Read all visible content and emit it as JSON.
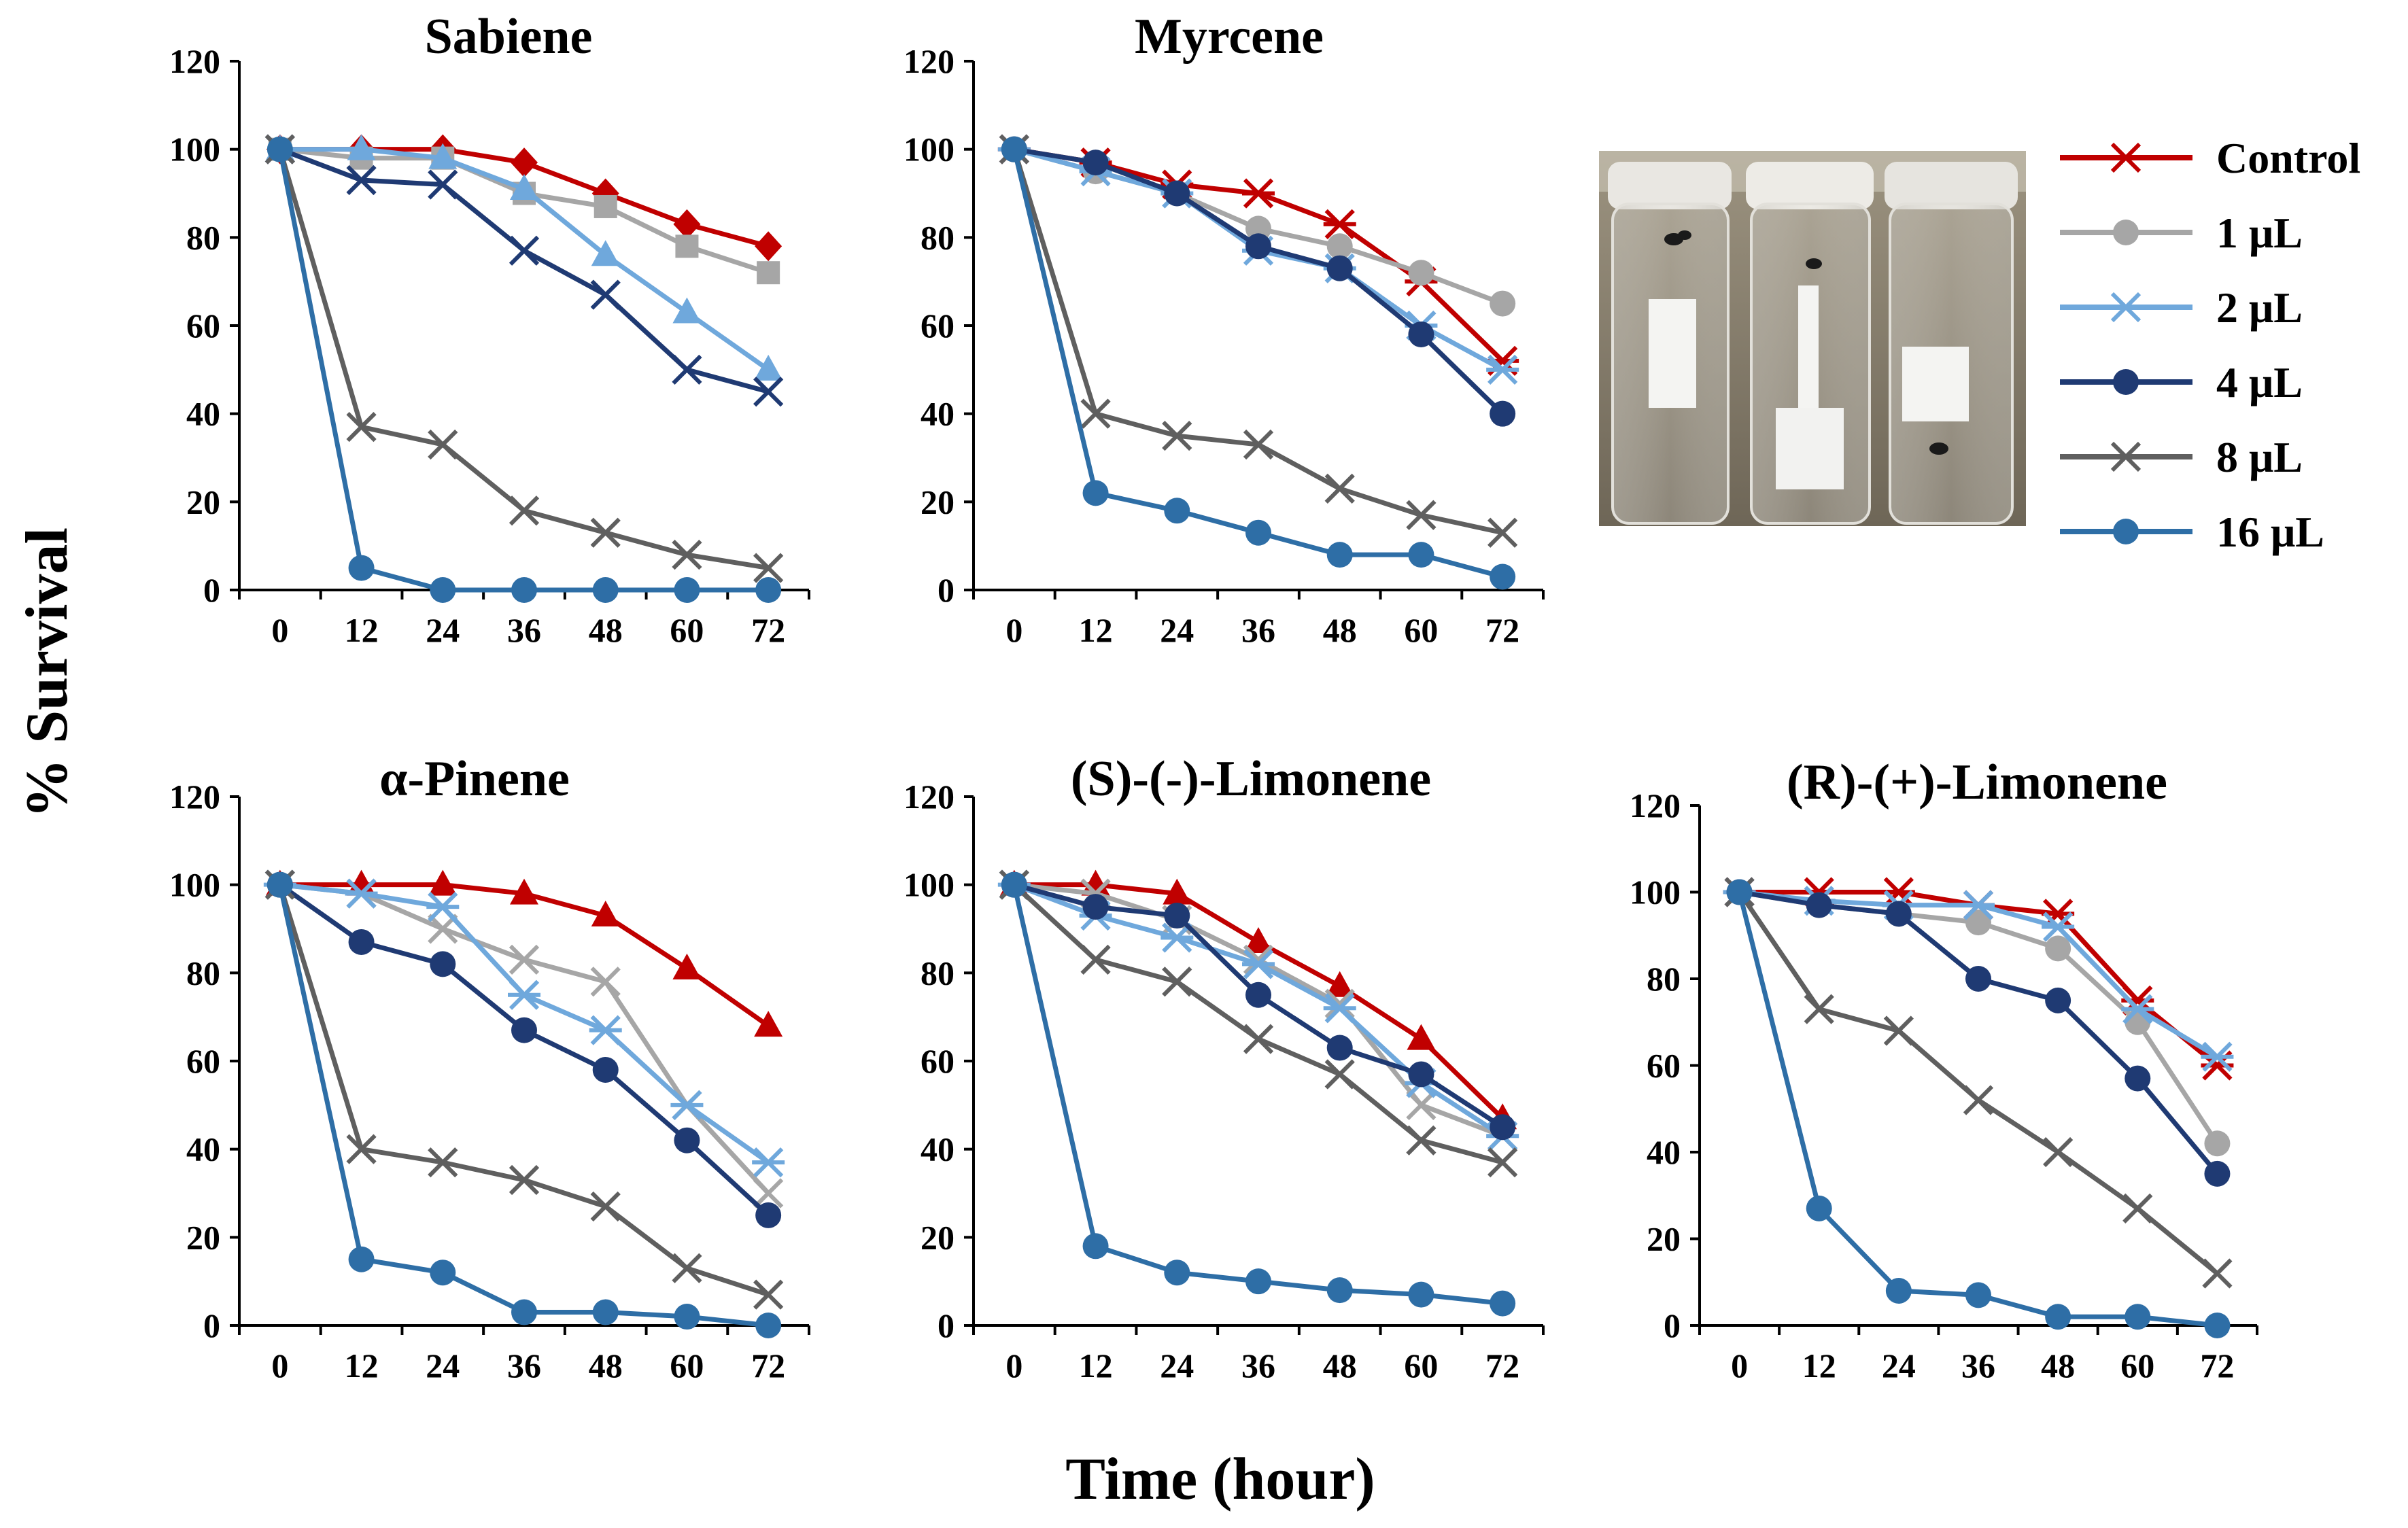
{
  "figure": {
    "ylabel": "% Survival",
    "xlabel": "Time (hour)",
    "photo_name": "vials-photo"
  },
  "legend": {
    "entries": [
      {
        "label": "Control",
        "color": "#C00000",
        "marker": "asterisk"
      },
      {
        "label": "1 μL",
        "color": "#A6A6A6",
        "marker": "circle"
      },
      {
        "label": "2 μL",
        "color": "#6FA8DC",
        "marker": "asterisk"
      },
      {
        "label": "4 μL",
        "color": "#1F3A73",
        "marker": "circle"
      },
      {
        "label": "8 μL",
        "color": "#5F5F5F",
        "marker": "x"
      },
      {
        "label": "16 μL",
        "color": "#2E6EA6",
        "marker": "circle"
      }
    ]
  },
  "chart_data": [
    {
      "type": "line",
      "title": "Sabiene",
      "categories": [
        "0",
        "12",
        "24",
        "36",
        "48",
        "60",
        "72"
      ],
      "xlabel": "Time (hour)",
      "ylabel": "% Survival",
      "ylim": [
        0,
        120
      ],
      "yticks": [
        "0",
        "20",
        "40",
        "60",
        "80",
        "100",
        "120"
      ],
      "series": [
        {
          "name": "Control",
          "marker": "diamond",
          "values": [
            100,
            100,
            100,
            97,
            90,
            83,
            78
          ]
        },
        {
          "name": "1 μL",
          "marker": "square",
          "values": [
            100,
            98,
            98,
            90,
            87,
            78,
            72
          ]
        },
        {
          "name": "2 μL",
          "marker": "triangle",
          "values": [
            100,
            100,
            98,
            91,
            76,
            63,
            50
          ]
        },
        {
          "name": "4 μL",
          "marker": "x",
          "values": [
            100,
            93,
            92,
            77,
            67,
            50,
            45
          ]
        },
        {
          "name": "8 μL",
          "marker": "x",
          "values": [
            100,
            37,
            33,
            18,
            13,
            8,
            5
          ]
        },
        {
          "name": "16 μL",
          "marker": "circle",
          "values": [
            100,
            5,
            0,
            0,
            0,
            0,
            0
          ]
        }
      ]
    },
    {
      "type": "line",
      "title": "Myrcene",
      "categories": [
        "0",
        "12",
        "24",
        "36",
        "48",
        "60",
        "72"
      ],
      "xlabel": "Time (hour)",
      "ylabel": "% Survival",
      "ylim": [
        0,
        120
      ],
      "yticks": [
        "0",
        "20",
        "40",
        "60",
        "80",
        "100",
        "120"
      ],
      "series": [
        {
          "name": "Control",
          "marker": "asterisk",
          "values": [
            100,
            97,
            92,
            90,
            83,
            70,
            52
          ]
        },
        {
          "name": "1 μL",
          "marker": "circle",
          "values": [
            100,
            95,
            90,
            82,
            78,
            72,
            65
          ]
        },
        {
          "name": "2 μL",
          "marker": "asterisk",
          "values": [
            100,
            95,
            90,
            77,
            73,
            60,
            50
          ]
        },
        {
          "name": "4 μL",
          "marker": "circle",
          "values": [
            100,
            97,
            90,
            78,
            73,
            58,
            40
          ]
        },
        {
          "name": "8 μL",
          "marker": "x",
          "values": [
            100,
            40,
            35,
            33,
            23,
            17,
            13
          ]
        },
        {
          "name": "16 μL",
          "marker": "circle",
          "values": [
            100,
            22,
            18,
            13,
            8,
            8,
            3
          ]
        }
      ]
    },
    {
      "type": "line",
      "title": "α-Pinene",
      "categories": [
        "0",
        "12",
        "24",
        "36",
        "48",
        "60",
        "72"
      ],
      "xlabel": "Time (hour)",
      "ylabel": "% Survival",
      "ylim": [
        0,
        120
      ],
      "yticks": [
        "0",
        "20",
        "40",
        "60",
        "80",
        "100",
        "120"
      ],
      "series": [
        {
          "name": "Control",
          "marker": "triangle",
          "values": [
            100,
            100,
            100,
            98,
            93,
            81,
            68
          ]
        },
        {
          "name": "1 μL",
          "marker": "x",
          "values": [
            100,
            98,
            90,
            83,
            78,
            50,
            30
          ]
        },
        {
          "name": "2 μL",
          "marker": "asterisk",
          "values": [
            100,
            98,
            95,
            75,
            67,
            50,
            37
          ]
        },
        {
          "name": "4 μL",
          "marker": "circle",
          "values": [
            100,
            87,
            82,
            67,
            58,
            42,
            25
          ]
        },
        {
          "name": "8 μL",
          "marker": "x",
          "values": [
            100,
            40,
            37,
            33,
            27,
            13,
            7
          ]
        },
        {
          "name": "16 μL",
          "marker": "circle",
          "values": [
            100,
            15,
            12,
            3,
            3,
            2,
            0
          ]
        }
      ]
    },
    {
      "type": "line",
      "title": "(S)-(-)-Limonene",
      "categories": [
        "0",
        "12",
        "24",
        "36",
        "48",
        "60",
        "72"
      ],
      "xlabel": "Time (hour)",
      "ylabel": "% Survival",
      "ylim": [
        0,
        120
      ],
      "yticks": [
        "0",
        "20",
        "40",
        "60",
        "80",
        "100",
        "120"
      ],
      "series": [
        {
          "name": "Control",
          "marker": "triangle",
          "values": [
            100,
            100,
            98,
            87,
            77,
            65,
            47
          ]
        },
        {
          "name": "1 μL",
          "marker": "x",
          "values": [
            100,
            98,
            92,
            83,
            73,
            50,
            43
          ]
        },
        {
          "name": "2 μL",
          "marker": "asterisk",
          "values": [
            100,
            93,
            88,
            82,
            72,
            55,
            43
          ]
        },
        {
          "name": "4 μL",
          "marker": "circle",
          "values": [
            100,
            95,
            93,
            75,
            63,
            57,
            45
          ]
        },
        {
          "name": "8 μL",
          "marker": "x",
          "values": [
            100,
            83,
            78,
            65,
            57,
            42,
            37
          ]
        },
        {
          "name": "16 μL",
          "marker": "circle",
          "values": [
            100,
            18,
            12,
            10,
            8,
            7,
            5
          ]
        }
      ]
    },
    {
      "type": "line",
      "title": "(R)-(+)-Limonene",
      "categories": [
        "0",
        "12",
        "24",
        "36",
        "48",
        "60",
        "72"
      ],
      "xlabel": "Time (hour)",
      "ylabel": "% Survival",
      "ylim": [
        0,
        120
      ],
      "yticks": [
        "0",
        "20",
        "40",
        "60",
        "80",
        "100",
        "120"
      ],
      "series": [
        {
          "name": "Control",
          "marker": "asterisk",
          "values": [
            100,
            100,
            100,
            97,
            95,
            75,
            60
          ]
        },
        {
          "name": "1 μL",
          "marker": "circle",
          "values": [
            100,
            97,
            95,
            93,
            87,
            70,
            42
          ]
        },
        {
          "name": "2 μL",
          "marker": "asterisk",
          "values": [
            100,
            98,
            97,
            97,
            92,
            73,
            62
          ]
        },
        {
          "name": "4 μL",
          "marker": "circle",
          "values": [
            100,
            97,
            95,
            80,
            75,
            57,
            35
          ]
        },
        {
          "name": "8 μL",
          "marker": "x",
          "values": [
            100,
            73,
            68,
            52,
            40,
            27,
            12
          ]
        },
        {
          "name": "16 μL",
          "marker": "circle",
          "values": [
            100,
            27,
            8,
            7,
            2,
            2,
            0
          ]
        }
      ]
    }
  ]
}
